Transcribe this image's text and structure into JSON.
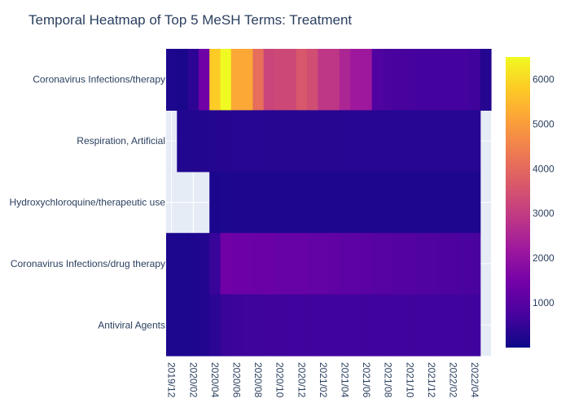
{
  "chart_data": {
    "type": "heatmap",
    "title": "Temporal Heatmap of Top 5 MeSH Terms: Treatment",
    "xlabel": "",
    "ylabel": "",
    "rows": [
      "Coronavirus Infections/therapy",
      "Respiration, Artificial",
      "Hydroxychloroquine/therapeutic use",
      "Coronavirus Infections/drug therapy",
      "Antiviral Agents"
    ],
    "x_start": "2019/12",
    "x_end": "2022/05",
    "x_tick_labels": [
      "2019/12",
      "2020/02",
      "2020/04",
      "2020/06",
      "2020/08",
      "2020/10",
      "2020/12",
      "2021/02",
      "2021/04",
      "2021/06",
      "2021/08",
      "2021/10",
      "2021/12",
      "2022/02",
      "2022/04"
    ],
    "colorbar_ticks": [
      1000,
      2000,
      3000,
      4000,
      5000,
      6000
    ],
    "zmin": 0,
    "zmax": 6500,
    "values": [
      [
        200,
        150,
        400,
        1400,
        5800,
        6500,
        5200,
        5200,
        4100,
        3200,
        3300,
        3300,
        3600,
        3400,
        2900,
        2900,
        2500,
        2200,
        2200,
        900,
        800,
        750,
        750,
        700,
        700,
        700,
        700,
        700,
        650,
        300
      ],
      [
        null,
        250,
        260,
        280,
        290,
        300,
        320,
        320,
        320,
        330,
        330,
        330,
        330,
        330,
        330,
        330,
        320,
        320,
        320,
        320,
        320,
        320,
        320,
        320,
        320,
        320,
        320,
        320,
        320,
        null
      ],
      [
        null,
        null,
        null,
        null,
        180,
        200,
        210,
        210,
        210,
        210,
        210,
        210,
        210,
        210,
        210,
        210,
        210,
        210,
        210,
        210,
        210,
        210,
        210,
        210,
        210,
        210,
        210,
        210,
        210,
        null
      ],
      [
        200,
        200,
        220,
        280,
        550,
        1400,
        1350,
        1350,
        1300,
        1300,
        1250,
        1250,
        1250,
        1200,
        1200,
        1150,
        1100,
        1100,
        1050,
        1000,
        1000,
        950,
        950,
        900,
        900,
        850,
        850,
        800,
        800,
        null
      ],
      [
        200,
        200,
        220,
        260,
        380,
        550,
        600,
        620,
        620,
        640,
        650,
        660,
        660,
        660,
        660,
        660,
        660,
        660,
        660,
        660,
        660,
        660,
        660,
        660,
        660,
        660,
        660,
        660,
        660,
        null
      ]
    ]
  }
}
